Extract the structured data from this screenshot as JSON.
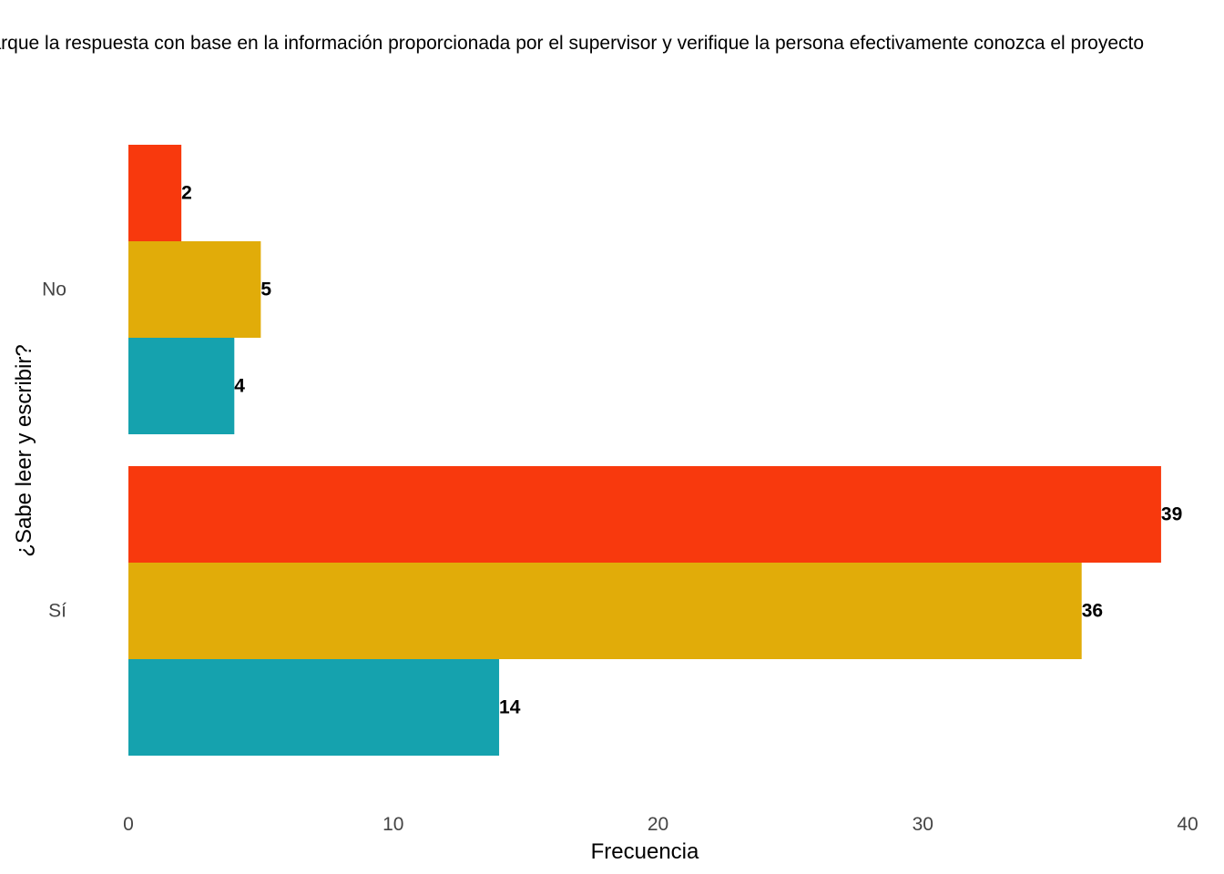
{
  "chart_data": {
    "type": "bar",
    "orientation": "horizontal",
    "title": "Marque la respuesta con base en la información proporcionada por el supervisor y verifique la persona efectivamente conozca el proyecto",
    "xlabel": "Frecuencia",
    "ylabel": "¿Sabe leer y escribir?",
    "categories": [
      "No",
      "Sí"
    ],
    "series": [
      {
        "color": "#F8390D",
        "values": [
          2,
          39
        ]
      },
      {
        "color": "#E1AC09",
        "values": [
          5,
          36
        ]
      },
      {
        "color": "#15A2AE",
        "values": [
          4,
          14
        ]
      }
    ],
    "xlim": [
      0,
      40
    ],
    "xticks": [
      0,
      10,
      20,
      30,
      40
    ],
    "grid": false,
    "legend": "none",
    "data_labels": true
  }
}
